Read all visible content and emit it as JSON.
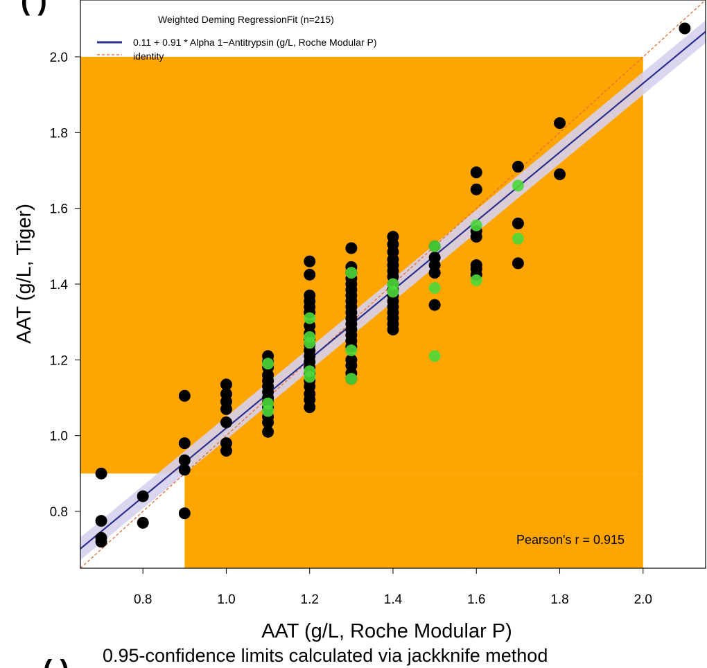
{
  "chart_data": {
    "type": "scatter",
    "title": "Weighted Deming RegressionFit (n=215)",
    "xlabel": "AAT (g/L, Roche Modular P)",
    "ylabel": "AAT (g/L, Tiger)",
    "caption": "0.95-confidence limits calculated via jackknife method",
    "xlim": [
      0.65,
      2.15
    ],
    "ylim": [
      0.65,
      2.15
    ],
    "x_ticks": [
      "0.8",
      "1.0",
      "1.2",
      "1.4",
      "1.6",
      "1.8",
      "2.0"
    ],
    "y_ticks": [
      "0.8",
      "1.0",
      "1.2",
      "1.4",
      "1.6",
      "1.8",
      "2.0"
    ],
    "grid": false,
    "legend_position": "top-left",
    "legend": {
      "fit_label": "0.11 + 0.91 * Alpha 1−Antitrypsin (g/L, Roche Modular P)",
      "identity_label": "identity"
    },
    "regression": {
      "intercept": 0.11,
      "slope": 0.91,
      "ci_half_width": 0.03
    },
    "annotation": "Pearson's r = 0.915",
    "colors": {
      "acceptance_region": "#ffa500",
      "regression_line": "#2b2f8c",
      "confidence_band": "#d6d2ee",
      "identity_line": "#e0733a",
      "black_points": "#000000",
      "green_points": "#4cd83a"
    },
    "series": [
      {
        "color": "black",
        "points": [
          [
            0.7,
            0.9
          ],
          [
            0.7,
            0.775
          ],
          [
            0.7,
            0.73
          ],
          [
            0.7,
            0.72
          ],
          [
            0.8,
            0.84
          ],
          [
            0.8,
            0.77
          ],
          [
            0.9,
            1.105
          ],
          [
            0.9,
            0.98
          ],
          [
            0.9,
            0.935
          ],
          [
            0.9,
            0.91
          ],
          [
            0.9,
            0.795
          ],
          [
            1.0,
            1.135
          ],
          [
            1.0,
            1.11
          ],
          [
            1.0,
            1.09
          ],
          [
            1.0,
            1.07
          ],
          [
            1.0,
            1.035
          ],
          [
            1.0,
            0.98
          ],
          [
            1.0,
            0.96
          ],
          [
            1.1,
            1.21
          ],
          [
            1.1,
            1.195
          ],
          [
            1.1,
            1.18
          ],
          [
            1.1,
            1.16
          ],
          [
            1.1,
            1.145
          ],
          [
            1.1,
            1.13
          ],
          [
            1.1,
            1.115
          ],
          [
            1.1,
            1.1
          ],
          [
            1.1,
            1.09
          ],
          [
            1.1,
            1.075
          ],
          [
            1.1,
            1.05
          ],
          [
            1.1,
            1.035
          ],
          [
            1.1,
            1.01
          ],
          [
            1.2,
            1.46
          ],
          [
            1.2,
            1.425
          ],
          [
            1.2,
            1.37
          ],
          [
            1.2,
            1.355
          ],
          [
            1.2,
            1.34
          ],
          [
            1.2,
            1.325
          ],
          [
            1.2,
            1.29
          ],
          [
            1.2,
            1.27
          ],
          [
            1.2,
            1.255
          ],
          [
            1.2,
            1.24
          ],
          [
            1.2,
            1.225
          ],
          [
            1.2,
            1.21
          ],
          [
            1.2,
            1.195
          ],
          [
            1.2,
            1.18
          ],
          [
            1.2,
            1.165
          ],
          [
            1.2,
            1.145
          ],
          [
            1.2,
            1.13
          ],
          [
            1.2,
            1.11
          ],
          [
            1.2,
            1.095
          ],
          [
            1.2,
            1.075
          ],
          [
            1.3,
            1.495
          ],
          [
            1.3,
            1.445
          ],
          [
            1.3,
            1.43
          ],
          [
            1.3,
            1.415
          ],
          [
            1.3,
            1.4
          ],
          [
            1.3,
            1.385
          ],
          [
            1.3,
            1.37
          ],
          [
            1.3,
            1.355
          ],
          [
            1.3,
            1.34
          ],
          [
            1.3,
            1.325
          ],
          [
            1.3,
            1.31
          ],
          [
            1.3,
            1.295
          ],
          [
            1.3,
            1.28
          ],
          [
            1.3,
            1.265
          ],
          [
            1.3,
            1.25
          ],
          [
            1.3,
            1.235
          ],
          [
            1.3,
            1.2
          ],
          [
            1.3,
            1.185
          ],
          [
            1.3,
            1.165
          ],
          [
            1.3,
            1.15
          ],
          [
            1.4,
            1.525
          ],
          [
            1.4,
            1.505
          ],
          [
            1.4,
            1.485
          ],
          [
            1.4,
            1.465
          ],
          [
            1.4,
            1.45
          ],
          [
            1.4,
            1.435
          ],
          [
            1.4,
            1.42
          ],
          [
            1.4,
            1.4
          ],
          [
            1.4,
            1.385
          ],
          [
            1.4,
            1.37
          ],
          [
            1.4,
            1.355
          ],
          [
            1.4,
            1.34
          ],
          [
            1.4,
            1.325
          ],
          [
            1.4,
            1.31
          ],
          [
            1.4,
            1.295
          ],
          [
            1.4,
            1.28
          ],
          [
            1.5,
            1.5
          ],
          [
            1.5,
            1.47
          ],
          [
            1.5,
            1.45
          ],
          [
            1.5,
            1.43
          ],
          [
            1.5,
            1.345
          ],
          [
            1.6,
            1.695
          ],
          [
            1.6,
            1.65
          ],
          [
            1.6,
            1.54
          ],
          [
            1.6,
            1.525
          ],
          [
            1.6,
            1.45
          ],
          [
            1.6,
            1.44
          ],
          [
            1.6,
            1.425
          ],
          [
            1.7,
            1.71
          ],
          [
            1.7,
            1.56
          ],
          [
            1.7,
            1.455
          ],
          [
            1.8,
            1.825
          ],
          [
            1.8,
            1.69
          ],
          [
            2.1,
            2.075
          ]
        ]
      },
      {
        "color": "green",
        "points": [
          [
            1.1,
            1.19
          ],
          [
            1.1,
            1.085
          ],
          [
            1.1,
            1.065
          ],
          [
            1.2,
            1.31
          ],
          [
            1.2,
            1.26
          ],
          [
            1.2,
            1.245
          ],
          [
            1.2,
            1.17
          ],
          [
            1.2,
            1.155
          ],
          [
            1.3,
            1.43
          ],
          [
            1.3,
            1.225
          ],
          [
            1.3,
            1.15
          ],
          [
            1.4,
            1.4
          ],
          [
            1.4,
            1.38
          ],
          [
            1.5,
            1.5
          ],
          [
            1.5,
            1.39
          ],
          [
            1.5,
            1.21
          ],
          [
            1.6,
            1.555
          ],
          [
            1.6,
            1.41
          ],
          [
            1.7,
            1.66
          ],
          [
            1.7,
            1.52
          ]
        ]
      }
    ]
  }
}
